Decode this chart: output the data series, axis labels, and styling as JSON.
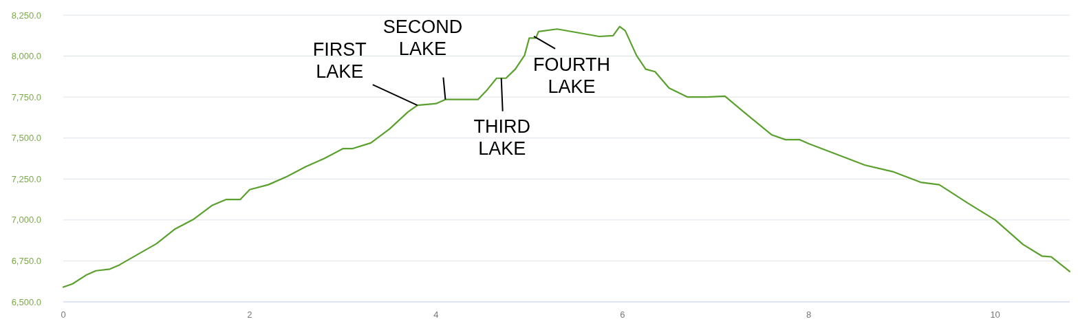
{
  "chart_data": {
    "type": "line",
    "x": [
      0,
      0.1,
      0.25,
      0.35,
      0.5,
      0.6,
      0.8,
      1.0,
      1.2,
      1.4,
      1.6,
      1.75,
      1.9,
      2.0,
      2.2,
      2.4,
      2.6,
      2.8,
      3.0,
      3.1,
      3.3,
      3.5,
      3.7,
      3.8,
      4.0,
      4.1,
      4.3,
      4.45,
      4.55,
      4.65,
      4.75,
      4.85,
      4.95,
      5.0,
      5.07,
      5.1,
      5.3,
      5.5,
      5.75,
      5.9,
      5.97,
      6.03,
      6.15,
      6.25,
      6.35,
      6.5,
      6.7,
      6.9,
      7.1,
      7.3,
      7.6,
      7.75,
      7.9,
      8.0,
      8.3,
      8.6,
      8.9,
      9.2,
      9.4,
      9.7,
      10.0,
      10.3,
      10.5,
      10.6,
      10.8
    ],
    "series": [
      {
        "color": "#5aa02c",
        "values": [
          6590,
          6610,
          6665,
          6690,
          6700,
          6725,
          6790,
          6855,
          6945,
          7005,
          7090,
          7125,
          7125,
          7185,
          7215,
          7265,
          7325,
          7375,
          7435,
          7435,
          7470,
          7555,
          7660,
          7700,
          7710,
          7735,
          7735,
          7735,
          7795,
          7865,
          7865,
          7920,
          8005,
          8110,
          8110,
          8150,
          8165,
          8145,
          8120,
          8125,
          8180,
          8155,
          8005,
          7920,
          7905,
          7805,
          7750,
          7750,
          7755,
          7660,
          7520,
          7490,
          7490,
          7465,
          7400,
          7335,
          7295,
          7230,
          7215,
          7105,
          7000,
          6850,
          6780,
          6775,
          6685
        ]
      }
    ],
    "xlim": [
      0,
      10.8
    ],
    "xticks": [
      0,
      2,
      4,
      6,
      8,
      10
    ],
    "ylim": [
      6500,
      8250
    ],
    "yticks": [
      {
        "value": 6500,
        "label": "6,500.0"
      },
      {
        "value": 6750,
        "label": "6,750.0"
      },
      {
        "value": 7000,
        "label": "7,000.0"
      },
      {
        "value": 7250,
        "label": "7,250.0"
      },
      {
        "value": 7500,
        "label": "7,500.0"
      },
      {
        "value": 7750,
        "label": "7,750.0"
      },
      {
        "value": 8000,
        "label": "8,000.0"
      },
      {
        "value": 8250,
        "label": "8,250.0"
      }
    ],
    "grid": "y",
    "marker": "none",
    "line_style": "solid",
    "annotations": [
      {
        "text": "FIRST LAKE",
        "x": 3.8,
        "y": 7700
      },
      {
        "text": "SECOND LAKE",
        "x": 4.1,
        "y": 7735
      },
      {
        "text": "THIRD LAKE",
        "x": 4.7,
        "y": 7865
      },
      {
        "text": "FOURTH LAKE",
        "x": 5.05,
        "y": 8120
      }
    ]
  }
}
